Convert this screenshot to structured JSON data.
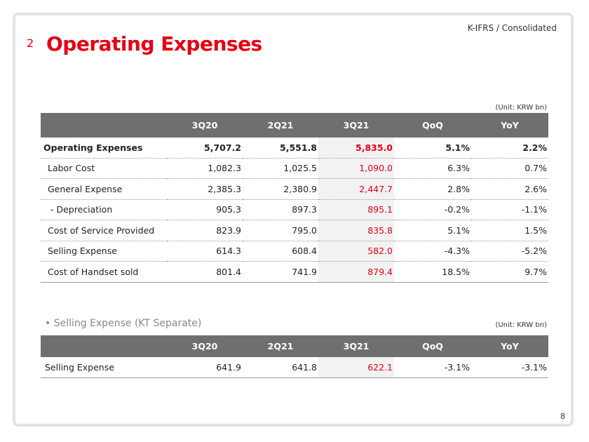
{
  "header": {
    "note": "K-IFRS / Consolidated",
    "section_number": "2",
    "title": "Operating Expenses"
  },
  "table1": {
    "unit": "(Unit: KRW bn)",
    "columns": [
      "",
      "3Q20",
      "2Q21",
      "3Q21",
      "QoQ",
      "YoY"
    ],
    "rows": [
      {
        "label": "Operating Expenses",
        "values": [
          "5,707.2",
          "5,551.8",
          "5,835.0",
          "5.1%",
          "2.2%"
        ],
        "bold": true
      },
      {
        "label": "Labor Cost",
        "values": [
          "1,082.3",
          "1,025.5",
          "1,090.0",
          "6.3%",
          "0.7%"
        ]
      },
      {
        "label": "General Expense",
        "values": [
          "2,385.3",
          "2,380.9",
          "2,447.7",
          "2.8%",
          "2.6%"
        ]
      },
      {
        "label": "- Depreciation",
        "values": [
          "905.3",
          "897.3",
          "895.1",
          "-0.2%",
          "-1.1%"
        ]
      },
      {
        "label": "Cost of Service Provided",
        "values": [
          "823.9",
          "795.0",
          "835.8",
          "5.1%",
          "1.5%"
        ]
      },
      {
        "label": "Selling Expense",
        "values": [
          "614.3",
          "608.4",
          "582.0",
          "-4.3%",
          "-5.2%"
        ]
      },
      {
        "label": "Cost of Handset sold",
        "values": [
          "801.4",
          "741.9",
          "879.4",
          "18.5%",
          "9.7%"
        ]
      }
    ]
  },
  "table2": {
    "heading": "• Selling Expense (KT Separate)",
    "unit": "(Unit: KRW bn)",
    "columns": [
      "",
      "3Q20",
      "2Q21",
      "3Q21",
      "QoQ",
      "YoY"
    ],
    "rows": [
      {
        "label": "Selling Expense",
        "values": [
          "641.9",
          "641.8",
          "622.1",
          "-3.1%",
          "-3.1%"
        ]
      }
    ]
  },
  "page_number": "8",
  "colors": {
    "accent_red": "#e60012",
    "header_gray": "#6f6f6f",
    "highlight_bg": "#f2f2f2"
  }
}
